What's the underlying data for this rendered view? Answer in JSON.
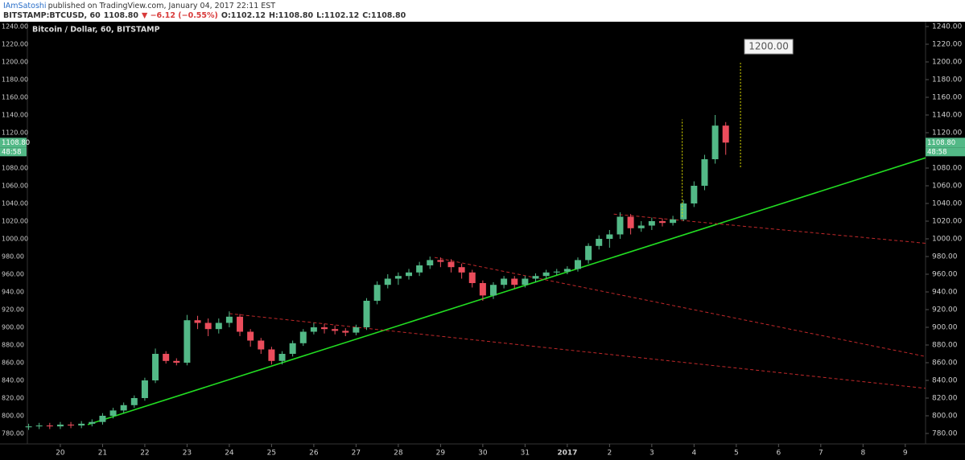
{
  "header": {
    "author": "IAmSatoshi",
    "published": "published on TradingView.com, January 04, 2017 22:11 EST",
    "symbol": "BITSTAMP:BTCUSD, 60",
    "last": "1108.80",
    "change": "▼ −6.12 (−0.55%)",
    "ohlc": [
      "O:1102.12",
      "H:1108.80",
      "L:1102.12",
      "C:1108.80"
    ]
  },
  "chart_data": {
    "type": "candlestick",
    "title": "Bitcoin / Dollar, 60, BITSTAMP",
    "up_color": "#53b987",
    "down_color": "#eb4d5c",
    "x": [
      -0.75,
      -0.5,
      -0.25,
      0,
      0.25,
      0.5,
      0.75,
      1,
      1.25,
      1.5,
      1.75,
      2,
      2.25,
      2.5,
      2.75,
      3,
      3.25,
      3.5,
      3.75,
      4,
      4.25,
      4.5,
      4.75,
      5,
      5.25,
      5.5,
      5.75,
      6,
      6.25,
      6.5,
      6.75,
      7,
      7.25,
      7.5,
      7.75,
      8,
      8.25,
      8.5,
      8.75,
      9,
      9.25,
      9.5,
      9.75,
      10,
      10.25,
      10.5,
      10.75,
      11,
      11.25,
      11.5,
      11.75,
      12,
      12.25,
      12.5,
      12.75,
      13,
      13.25,
      13.5,
      13.75,
      14,
      14.25,
      14.5,
      14.75,
      15,
      15.25,
      15.5,
      15.75
    ],
    "open": [
      787,
      788,
      789,
      788,
      790,
      789,
      791,
      793,
      800,
      806,
      812,
      820,
      840,
      870,
      862,
      860,
      908,
      905,
      898,
      905,
      912,
      895,
      885,
      875,
      862,
      870,
      882,
      895,
      900,
      898,
      896,
      894,
      900,
      930,
      948,
      955,
      958,
      962,
      970,
      976,
      974,
      968,
      962,
      950,
      936,
      948,
      955,
      948,
      955,
      958,
      962,
      963,
      966,
      976,
      992,
      1000,
      1005,
      1025,
      1012,
      1015,
      1020,
      1018,
      1022,
      1040,
      1060,
      1090,
      1128
    ],
    "high": [
      791,
      792,
      792,
      793,
      793,
      794,
      796,
      803,
      809,
      815,
      823,
      843,
      876,
      873,
      865,
      914,
      913,
      910,
      910,
      918,
      915,
      898,
      888,
      878,
      873,
      885,
      898,
      905,
      904,
      902,
      899,
      903,
      933,
      952,
      960,
      962,
      966,
      974,
      980,
      979,
      977,
      972,
      965,
      953,
      951,
      958,
      958,
      958,
      961,
      965,
      966,
      969,
      979,
      995,
      1004,
      1010,
      1030,
      1028,
      1020,
      1024,
      1023,
      1026,
      1044,
      1065,
      1095,
      1140,
      1132
    ],
    "low": [
      784,
      785,
      785,
      785,
      786,
      786,
      788,
      790,
      797,
      803,
      809,
      817,
      837,
      859,
      857,
      857,
      898,
      890,
      893,
      900,
      890,
      878,
      870,
      858,
      858,
      867,
      879,
      892,
      893,
      892,
      890,
      891,
      897,
      926,
      944,
      948,
      954,
      958,
      966,
      968,
      962,
      955,
      945,
      930,
      932,
      944,
      944,
      945,
      951,
      955,
      959,
      960,
      963,
      972,
      988,
      990,
      1000,
      1005,
      1008,
      1010,
      1014,
      1015,
      1020,
      1036,
      1055,
      1085,
      1095
    ],
    "close": [
      788,
      789,
      788,
      790,
      789,
      791,
      793,
      800,
      806,
      812,
      820,
      840,
      870,
      862,
      860,
      908,
      905,
      898,
      905,
      912,
      895,
      885,
      875,
      862,
      870,
      882,
      895,
      900,
      898,
      896,
      894,
      900,
      930,
      948,
      955,
      958,
      962,
      970,
      976,
      974,
      968,
      962,
      950,
      936,
      948,
      955,
      948,
      955,
      958,
      962,
      963,
      966,
      976,
      992,
      1000,
      1005,
      1025,
      1012,
      1015,
      1020,
      1018,
      1022,
      1040,
      1060,
      1090,
      1128,
      1108.8
    ],
    "last_price_label": "1108.80",
    "countdown": "48:58",
    "xlim": [
      -0.78,
      20.48
    ],
    "xticks": [
      {
        "value": 0,
        "label": "20"
      },
      {
        "value": 1,
        "label": "21"
      },
      {
        "value": 2,
        "label": "22"
      },
      {
        "value": 3,
        "label": "23"
      },
      {
        "value": 4,
        "label": "24"
      },
      {
        "value": 5,
        "label": "25"
      },
      {
        "value": 6,
        "label": "26"
      },
      {
        "value": 7,
        "label": "27"
      },
      {
        "value": 8,
        "label": "28"
      },
      {
        "value": 9,
        "label": "29"
      },
      {
        "value": 10,
        "label": "30"
      },
      {
        "value": 11,
        "label": "31"
      },
      {
        "value": 12,
        "label": "2017"
      },
      {
        "value": 13,
        "label": "2"
      },
      {
        "value": 14,
        "label": "3"
      },
      {
        "value": 15,
        "label": "4"
      },
      {
        "value": 16,
        "label": "5"
      },
      {
        "value": 17,
        "label": "6"
      },
      {
        "value": 18,
        "label": "7"
      },
      {
        "value": 19,
        "label": "8"
      },
      {
        "value": 20,
        "label": "9"
      }
    ],
    "ylim": [
      768.18,
      1245.45
    ],
    "yticks": [
      {
        "value": 780,
        "label": "780.00"
      },
      {
        "value": 800,
        "label": "800.00"
      },
      {
        "value": 820,
        "label": "820.00"
      },
      {
        "value": 840,
        "label": "840.00"
      },
      {
        "value": 860,
        "label": "860.00"
      },
      {
        "value": 880,
        "label": "880.00"
      },
      {
        "value": 900,
        "label": "900.00"
      },
      {
        "value": 920,
        "label": "920.00"
      },
      {
        "value": 940,
        "label": "940.00"
      },
      {
        "value": 960,
        "label": "960.00"
      },
      {
        "value": 980,
        "label": "980.00"
      },
      {
        "value": 1000,
        "label": "1000.00"
      },
      {
        "value": 1020,
        "label": "1020.00"
      },
      {
        "value": 1040,
        "label": "1040.00"
      },
      {
        "value": 1060,
        "label": "1060.00"
      },
      {
        "value": 1080,
        "label": "1080.00"
      },
      {
        "value": 1120,
        "label": "1120.00"
      },
      {
        "value": 1140,
        "label": "1140.00"
      },
      {
        "value": 1160,
        "label": "1160.00"
      },
      {
        "value": 1180,
        "label": "1180.00"
      },
      {
        "value": 1200,
        "label": "1200.00"
      },
      {
        "value": 1220,
        "label": "1220.00"
      },
      {
        "value": 1240,
        "label": "1240.00"
      }
    ],
    "trend_lines": [
      {
        "color": "#22dd22",
        "dashed": false,
        "x": [
          0.65,
          20.48
        ],
        "y": [
          790,
          1091.6
        ]
      },
      {
        "color": "#c0282a",
        "dashed": true,
        "x": [
          4.0,
          20.48
        ],
        "y": [
          915.5,
          831
        ]
      },
      {
        "color": "#c0282a",
        "dashed": true,
        "x": [
          8.86,
          20.48
        ],
        "y": [
          979,
          867
        ]
      },
      {
        "color": "#c0282a",
        "dashed": true,
        "x": [
          13.1,
          20.48
        ],
        "y": [
          1028,
          995
        ]
      }
    ],
    "projections": [
      {
        "x": 14.72,
        "from": 1025,
        "to": 1135
      },
      {
        "x": 16.1,
        "from": 1081,
        "to": 1199
      }
    ],
    "projection_color": "#e6e600",
    "target": {
      "value": 1200,
      "label": "1200.00"
    }
  }
}
